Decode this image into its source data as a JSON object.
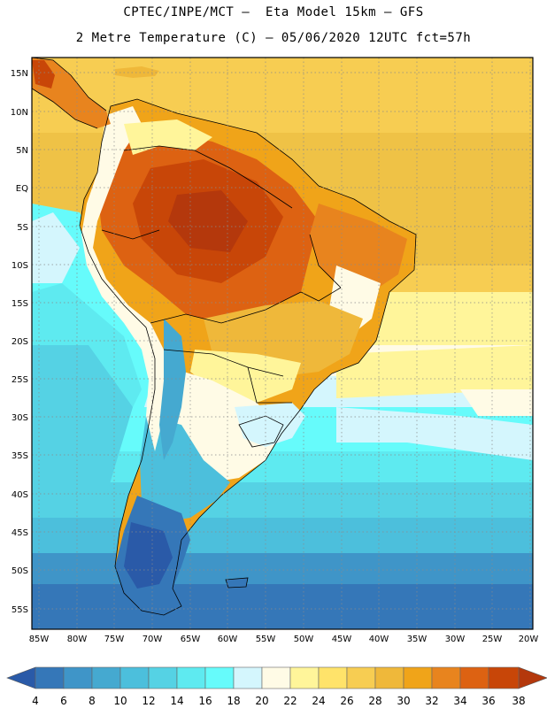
{
  "header": {
    "title_line1": "CPTEC/INPE/MCT –  Eta Model 15km – GFS",
    "title_line2": "2 Metre Temperature (C) – 05/06/2020 12UTC fct=57h"
  },
  "map": {
    "lat_labels": [
      "15N",
      "10N",
      "5N",
      "EQ",
      "5S",
      "10S",
      "15S",
      "20S",
      "25S",
      "30S",
      "35S",
      "40S",
      "45S",
      "50S",
      "55S"
    ],
    "lon_labels": [
      "85W",
      "80W",
      "75W",
      "70W",
      "65W",
      "60W",
      "55W",
      "50W",
      "45W",
      "40W",
      "35W",
      "30W",
      "25W",
      "20W"
    ]
  },
  "colorbar": {
    "colors": [
      "#2a5aa8",
      "#3577b8",
      "#3f95c8",
      "#45a9d0",
      "#4cbfdc",
      "#55d2e4",
      "#5eeaf0",
      "#66fbfb",
      "#d4f6fd",
      "#fffbe6",
      "#fff59a",
      "#ffe36a",
      "#f7cd52",
      "#efb83a",
      "#f0a419",
      "#e8841e",
      "#dd6212",
      "#c84608",
      "#b4380c"
    ],
    "labels": [
      "4",
      "6",
      "8",
      "10",
      "12",
      "14",
      "16",
      "18",
      "20",
      "22",
      "24",
      "26",
      "28",
      "30",
      "32",
      "34",
      "36",
      "38"
    ]
  }
}
